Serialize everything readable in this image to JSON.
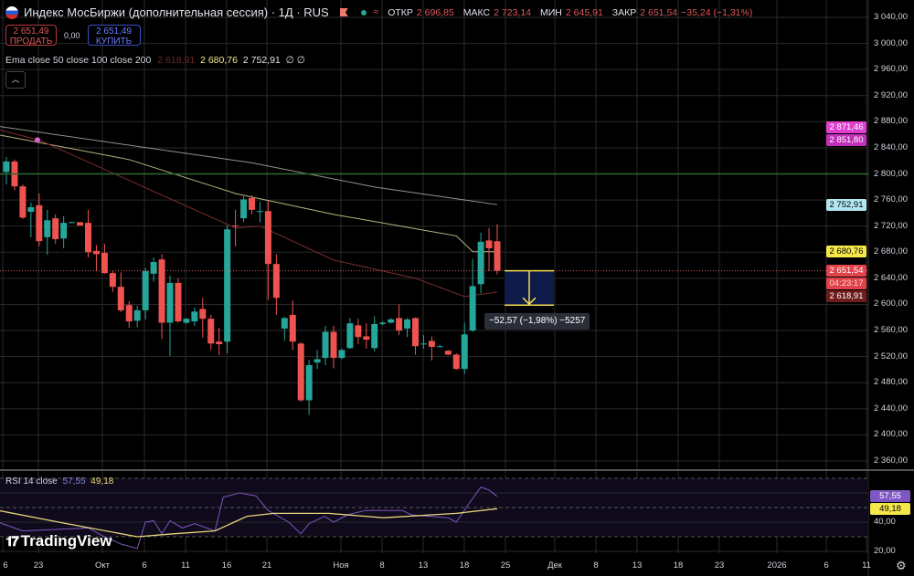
{
  "header": {
    "title": "Индекс МосБиржи (дополнительная сессия) · 1Д · RUS",
    "ohlc": {
      "open_label": "ОТКР",
      "open": "2 696,85",
      "high_label": "МАКС",
      "high": "2 723,14",
      "low_label": "МИН",
      "low": "2 645,91",
      "close_label": "ЗАКР",
      "close": "2 651,54",
      "change": "−35,24 (−1,31%)"
    }
  },
  "trade": {
    "sell_price": "2 651,49",
    "sell_label": "ПРОДАТЬ",
    "spread": "0,00",
    "buy_price": "2 651,49",
    "buy_label": "КУПИТЬ"
  },
  "ema_legend": {
    "label": "Ema close 50 close 100 close 200",
    "v50": "2 618,91",
    "v100": "2 680,76",
    "v200": "2 752,91",
    "extra": "∅ ∅"
  },
  "collapse_icon": "chevron-up-icon",
  "rsi_legend": {
    "label": "RSI 14 close",
    "rsi": "57,55",
    "ma": "49,18"
  },
  "logo": "TradingView",
  "measure": {
    "text": "−52,57 (−1,98%) −5257"
  },
  "colors": {
    "up": "#26a69a",
    "down": "#ef5350",
    "ema50": "#7a2b2b",
    "ema100": "#e6e0a0",
    "ema200": "#c8d4c4",
    "rsi": "#7e57c2",
    "rsi_ma": "#e6d37a",
    "measure_fill": "#0d1a4a",
    "measure_line": "#f4e04d"
  },
  "price_axis": [
    "3 040,00",
    "3 000,00",
    "2 960,00",
    "2 920,00",
    "2 880,00",
    "2 840,00",
    "2 800,00",
    "2 760,00",
    "2 720,00",
    "2 680,00",
    "2 640,00",
    "2 600,00",
    "2 560,00",
    "2 520,00",
    "2 480,00",
    "2 440,00",
    "2 400,00",
    "2 360,00"
  ],
  "price_tags": [
    {
      "text": "2 871,46",
      "bg": "#e040d0",
      "fg": "#fff",
      "price": 2871.46
    },
    {
      "text": "2 851,80",
      "bg": "#c030b8",
      "fg": "#fff",
      "price": 2851.8
    },
    {
      "text": "2 752,91",
      "bg": "#b2e6f0",
      "fg": "#000",
      "price": 2752.91
    },
    {
      "text": "2 680,76",
      "bg": "#f5e64a",
      "fg": "#000",
      "price": 2680.76
    },
    {
      "text": "2 651,54",
      "bg": "#e0434a",
      "fg": "#fff",
      "price": 2651.54
    },
    {
      "text": "04:23:17",
      "bg": "#e0434a",
      "fg": "#ffd0d0",
      "price": 2634.5
    },
    {
      "text": "2 618,91",
      "bg": "#6e1c1c",
      "fg": "#fff",
      "price": 2618.91
    }
  ],
  "rsi_axis": [
    "40,00",
    "20,00"
  ],
  "rsi_tags": [
    {
      "text": "57,55",
      "bg": "#7e57c2",
      "fg": "#fff",
      "value": 57.55
    },
    {
      "text": "49,18",
      "bg": "#f5e64a",
      "fg": "#000",
      "value": 49.18
    }
  ],
  "time_axis": [
    "6",
    "23",
    "Окт",
    "6",
    "11",
    "16",
    "21",
    "Ноя",
    "8",
    "13",
    "18",
    "25",
    "Дек",
    "8",
    "13",
    "18",
    "23",
    "2026",
    "6",
    "11"
  ],
  "chart_data": {
    "type": "candlestick",
    "current_price": 2651.54,
    "horizontal_line": 2800,
    "measure_range": [
      2651.54,
      2598.97
    ],
    "ylim": [
      2360,
      3040
    ],
    "candles": [
      [
        2803,
        2826,
        2784,
        2819
      ],
      [
        2819,
        2822,
        2775,
        2781
      ],
      [
        2781,
        2784,
        2731,
        2733
      ],
      [
        2742,
        2756,
        2703,
        2749
      ],
      [
        2752,
        2770,
        2689,
        2697
      ],
      [
        2703,
        2745,
        2676,
        2729
      ],
      [
        2732,
        2738,
        2693,
        2700
      ],
      [
        2701,
        2735,
        2686,
        2725
      ],
      [
        2726,
        2727,
        2725,
        2726
      ],
      [
        2726,
        2726,
        2720,
        2721
      ],
      [
        2725,
        2745,
        2672,
        2680
      ],
      [
        2682,
        2691,
        2651,
        2677
      ],
      [
        2679,
        2693,
        2647,
        2648
      ],
      [
        2648,
        2651,
        2619,
        2627
      ],
      [
        2627,
        2649,
        2588,
        2591
      ],
      [
        2599,
        2605,
        2564,
        2574
      ],
      [
        2575,
        2598,
        2565,
        2591
      ],
      [
        2591,
        2656,
        2577,
        2651
      ],
      [
        2647,
        2672,
        2635,
        2665
      ],
      [
        2669,
        2677,
        2547,
        2572
      ],
      [
        2572,
        2644,
        2521,
        2633
      ],
      [
        2633,
        2640,
        2572,
        2574
      ],
      [
        2572,
        2579,
        2570,
        2578
      ],
      [
        2574,
        2595,
        2567,
        2589
      ],
      [
        2593,
        2610,
        2549,
        2578
      ],
      [
        2578,
        2584,
        2530,
        2540
      ],
      [
        2543,
        2564,
        2522,
        2539
      ],
      [
        2543,
        2721,
        2525,
        2715
      ],
      [
        2721,
        2745,
        2689,
        2720
      ],
      [
        2732,
        2766,
        2726,
        2761
      ],
      [
        2763,
        2767,
        2738,
        2745
      ],
      [
        2743,
        2757,
        2726,
        2743
      ],
      [
        2743,
        2759,
        2607,
        2662
      ],
      [
        2662,
        2677,
        2584,
        2610
      ],
      [
        2563,
        2581,
        2544,
        2579
      ],
      [
        2584,
        2606,
        2530,
        2543
      ],
      [
        2540,
        2542,
        2451,
        2453
      ],
      [
        2453,
        2515,
        2431,
        2507
      ],
      [
        2511,
        2530,
        2501,
        2516
      ],
      [
        2518,
        2567,
        2507,
        2558
      ],
      [
        2558,
        2567,
        2502,
        2518
      ],
      [
        2518,
        2532,
        2516,
        2530
      ],
      [
        2533,
        2579,
        2532,
        2571
      ],
      [
        2568,
        2578,
        2539,
        2550
      ],
      [
        2551,
        2571,
        2532,
        2546
      ],
      [
        2533,
        2582,
        2528,
        2570
      ],
      [
        2570,
        2574,
        2568,
        2572
      ],
      [
        2572,
        2579,
        2571,
        2577
      ],
      [
        2579,
        2600,
        2553,
        2560
      ],
      [
        2563,
        2579,
        2550,
        2577
      ],
      [
        2579,
        2580,
        2523,
        2536
      ],
      [
        2539,
        2553,
        2532,
        2540
      ],
      [
        2544,
        2551,
        2514,
        2535
      ],
      [
        2536,
        2538,
        2534,
        2536
      ],
      [
        2529,
        2530,
        2522,
        2523
      ],
      [
        2523,
        2525,
        2500,
        2501
      ],
      [
        2501,
        2572,
        2493,
        2554
      ],
      [
        2560,
        2670,
        2558,
        2628
      ],
      [
        2631,
        2710,
        2617,
        2696
      ],
      [
        2698,
        2717,
        2651,
        2686
      ],
      [
        2696.85,
        2723.14,
        2645.91,
        2651.54
      ]
    ],
    "ema50": [
      [
        -1,
        2868
      ],
      [
        4,
        2852
      ],
      [
        28,
        2717
      ],
      [
        31,
        2720
      ],
      [
        40,
        2668
      ],
      [
        50,
        2640
      ],
      [
        56,
        2612
      ],
      [
        60,
        2618.91
      ]
    ],
    "ema100": [
      [
        -1,
        2860
      ],
      [
        15,
        2822
      ],
      [
        28,
        2770
      ],
      [
        40,
        2738
      ],
      [
        55,
        2705
      ],
      [
        57,
        2681
      ],
      [
        60,
        2680.76
      ]
    ],
    "ema200": [
      [
        -1,
        2873
      ],
      [
        30,
        2817
      ],
      [
        45,
        2780
      ],
      [
        60,
        2752.91
      ]
    ],
    "rsi": [
      [
        -1,
        40
      ],
      [
        2,
        34
      ],
      [
        6,
        35
      ],
      [
        10,
        36
      ],
      [
        12,
        30
      ],
      [
        14,
        25
      ],
      [
        16,
        22
      ],
      [
        17,
        40
      ],
      [
        18,
        41
      ],
      [
        19,
        32
      ],
      [
        20,
        41
      ],
      [
        21.5,
        36
      ],
      [
        23,
        39
      ],
      [
        25.5,
        34
      ],
      [
        26.5,
        57
      ],
      [
        28.5,
        60
      ],
      [
        30.5,
        58
      ],
      [
        32,
        48
      ],
      [
        34.5,
        40
      ],
      [
        36,
        32
      ],
      [
        37,
        39
      ],
      [
        38.9,
        44
      ],
      [
        40,
        40
      ],
      [
        41.7,
        45
      ],
      [
        43.9,
        48
      ],
      [
        46.1,
        48
      ],
      [
        48.4,
        48
      ],
      [
        49.5,
        45
      ],
      [
        51.7,
        44
      ],
      [
        54,
        43
      ],
      [
        55,
        40
      ],
      [
        56.2,
        50
      ],
      [
        58,
        64
      ],
      [
        59,
        62
      ],
      [
        60,
        57.55
      ]
    ],
    "rsi_ma": [
      [
        -1,
        48
      ],
      [
        6.4,
        40
      ],
      [
        16,
        30
      ],
      [
        20.4,
        32
      ],
      [
        25.5,
        34
      ],
      [
        29.4,
        44
      ],
      [
        32.7,
        46
      ],
      [
        39.4,
        46
      ],
      [
        46.1,
        43
      ],
      [
        55,
        46
      ],
      [
        60,
        49.18
      ]
    ],
    "rsi_levels": [
      70,
      50,
      30
    ],
    "rsi_ylim": [
      10,
      80
    ]
  }
}
